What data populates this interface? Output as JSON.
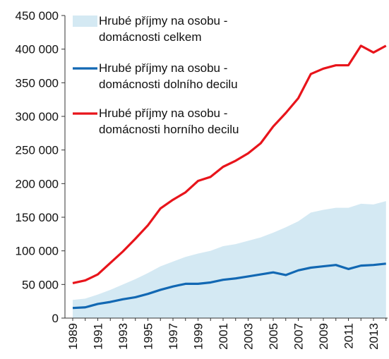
{
  "chart_data": {
    "type": "line",
    "categories": [
      "1989",
      null,
      "1991",
      null,
      "1993",
      null,
      "1995",
      null,
      "1997",
      null,
      "1999",
      null,
      "2001",
      null,
      "2003",
      null,
      "2005",
      null,
      "2007",
      null,
      "2009",
      null,
      "2011",
      null,
      "2013",
      null
    ],
    "series": [
      {
        "name": "Hrubé příjmy na osobu -\ndomácnosti celkem",
        "color": "#d4e9f3",
        "style": "area",
        "values": [
          27000,
          29000,
          35000,
          42000,
          50000,
          58000,
          67000,
          77000,
          84000,
          91000,
          96000,
          100000,
          107000,
          110000,
          115000,
          120000,
          127000,
          135000,
          144000,
          157000,
          161000,
          164000,
          164000,
          170000,
          169000,
          174000
        ]
      },
      {
        "name": "Hrubé příjmy na osobu -\ndomácnosti dolního decilu",
        "color": "#1268b3",
        "style": "line",
        "values": [
          15000,
          16000,
          21000,
          24000,
          28000,
          31000,
          36000,
          42000,
          47000,
          51000,
          51000,
          53000,
          57000,
          59000,
          62000,
          65000,
          68000,
          64000,
          71000,
          75000,
          77000,
          79000,
          73000,
          78000,
          79000,
          81000
        ]
      },
      {
        "name": "Hrubé příjmy na osobu -\ndomácnosti horního decilu",
        "color": "#e8141b",
        "style": "line",
        "values": [
          52000,
          56000,
          65000,
          82000,
          99000,
          118000,
          138000,
          163000,
          176000,
          187000,
          204000,
          210000,
          225000,
          234000,
          245000,
          260000,
          285000,
          305000,
          327000,
          363000,
          371000,
          376000,
          376000,
          405000,
          395000,
          405000
        ]
      }
    ],
    "ylim": [
      0,
      450000
    ],
    "yticks": [
      {
        "value": 0,
        "label": "0"
      },
      {
        "value": 50000,
        "label": "50 000"
      },
      {
        "value": 100000,
        "label": "100 000"
      },
      {
        "value": 150000,
        "label": "150 000"
      },
      {
        "value": 200000,
        "label": "200 000"
      },
      {
        "value": 250000,
        "label": "250 000"
      },
      {
        "value": 300000,
        "label": "300 000"
      },
      {
        "value": 350000,
        "label": "350 000"
      },
      {
        "value": 400000,
        "label": "400 000"
      },
      {
        "value": 450000,
        "label": "450 000"
      }
    ],
    "legend": "top-left"
  }
}
